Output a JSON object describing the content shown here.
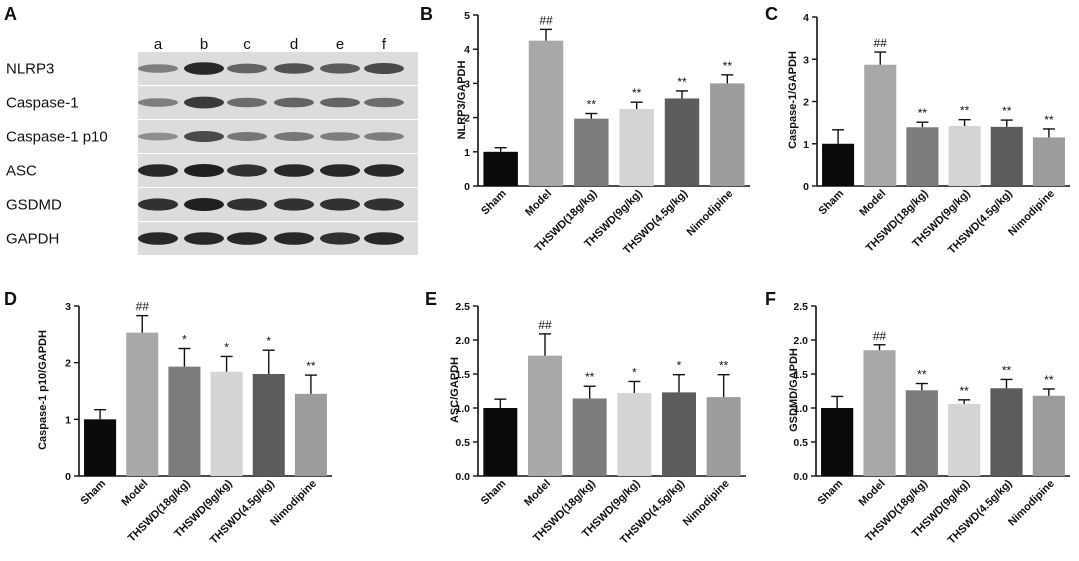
{
  "blot": {
    "letter": "A",
    "lanes": [
      "a",
      "b",
      "c",
      "d",
      "e",
      "f"
    ],
    "rows": [
      {
        "label": "NLRP3",
        "intensity": [
          0.45,
          0.95,
          0.6,
          0.7,
          0.65,
          0.75
        ]
      },
      {
        "label": "Caspase-1",
        "intensity": [
          0.45,
          0.85,
          0.55,
          0.6,
          0.6,
          0.55
        ]
      },
      {
        "label": "Caspase-1 p10",
        "intensity": [
          0.35,
          0.75,
          0.5,
          0.5,
          0.45,
          0.45
        ]
      },
      {
        "label": "ASC",
        "intensity": [
          0.95,
          1.0,
          0.9,
          0.95,
          0.95,
          0.95
        ]
      },
      {
        "label": "GSDMD",
        "intensity": [
          0.9,
          1.0,
          0.9,
          0.9,
          0.9,
          0.9
        ]
      },
      {
        "label": "GAPDH",
        "intensity": [
          0.95,
          0.95,
          0.95,
          0.95,
          0.9,
          0.95
        ]
      }
    ]
  },
  "chart_data": [
    {
      "panel": "B",
      "type": "bar",
      "ylabel": "NLRP3/GAPDH",
      "categories": [
        "Sham",
        "Model",
        "THSWD(18g/kg)",
        "THSWD(9g/kg)",
        "THSWD(4.5g/kg)",
        "Nimodipine"
      ],
      "values": [
        1.0,
        4.25,
        1.97,
        2.25,
        2.56,
        3.0
      ],
      "errors": [
        0.12,
        0.33,
        0.15,
        0.2,
        0.22,
        0.25
      ],
      "significance": [
        "",
        "##",
        "**",
        "**",
        "**",
        "**"
      ],
      "ylim": [
        0,
        5
      ],
      "yticks": [
        0,
        1,
        2,
        3,
        4,
        5
      ],
      "tick_labels": [
        "0",
        "1",
        "2",
        "3",
        "4",
        "5"
      ],
      "colors": [
        "#0a0a0a",
        "#a8a8a8",
        "#7c7c7c",
        "#d4d4d4",
        "#5c5c5c",
        "#9c9c9c"
      ]
    },
    {
      "panel": "C",
      "type": "bar",
      "ylabel": "Caspase-1/GAPDH",
      "categories": [
        "Sham",
        "Model",
        "THSWD(18g/kg)",
        "THSWD(9g/kg)",
        "THSWD(4.5g/kg)",
        "Nimodipine"
      ],
      "values": [
        1.0,
        2.87,
        1.39,
        1.42,
        1.4,
        1.15
      ],
      "errors": [
        0.33,
        0.3,
        0.12,
        0.15,
        0.16,
        0.2
      ],
      "significance": [
        "",
        "##",
        "**",
        "**",
        "**",
        "**"
      ],
      "ylim": [
        0,
        4
      ],
      "yticks": [
        0,
        1,
        2,
        3,
        4
      ],
      "tick_labels": [
        "0",
        "1",
        "2",
        "3",
        "4"
      ],
      "colors": [
        "#0a0a0a",
        "#a8a8a8",
        "#7c7c7c",
        "#d4d4d4",
        "#5c5c5c",
        "#9c9c9c"
      ]
    },
    {
      "panel": "D",
      "type": "bar",
      "ylabel": "Caspase-1 p10/GAPDH",
      "categories": [
        "Sham",
        "Model",
        "THSWD(18g/kg)",
        "THSWD(9g/kg)",
        "THSWD(4.5g/kg)",
        "Nimodipine"
      ],
      "values": [
        1.0,
        2.53,
        1.93,
        1.84,
        1.8,
        1.45
      ],
      "errors": [
        0.17,
        0.3,
        0.32,
        0.27,
        0.42,
        0.33
      ],
      "significance": [
        "",
        "##",
        "*",
        "*",
        "*",
        "**"
      ],
      "ylim": [
        0,
        3
      ],
      "yticks": [
        0,
        1,
        2,
        3
      ],
      "tick_labels": [
        "0",
        "1",
        "2",
        "3"
      ],
      "colors": [
        "#0a0a0a",
        "#a8a8a8",
        "#7c7c7c",
        "#d4d4d4",
        "#5c5c5c",
        "#9c9c9c"
      ]
    },
    {
      "panel": "E",
      "type": "bar",
      "ylabel": "ASC/GAPDH",
      "categories": [
        "Sham",
        "Model",
        "THSWD(18g/kg)",
        "THSWD(9g/kg)",
        "THSWD(4.5g/kg)",
        "Nimodipine"
      ],
      "values": [
        1.0,
        1.77,
        1.14,
        1.22,
        1.23,
        1.16
      ],
      "errors": [
        0.13,
        0.32,
        0.18,
        0.17,
        0.26,
        0.33
      ],
      "significance": [
        "",
        "##",
        "**",
        "*",
        "*",
        "**"
      ],
      "ylim": [
        0,
        2.5
      ],
      "yticks": [
        0,
        0.5,
        1,
        1.5,
        2,
        2.5
      ],
      "tick_labels": [
        "0.0",
        "0.5",
        "1.0",
        "1.5",
        "2.0",
        "2.5"
      ],
      "colors": [
        "#0a0a0a",
        "#a8a8a8",
        "#7c7c7c",
        "#d4d4d4",
        "#5c5c5c",
        "#9c9c9c"
      ]
    },
    {
      "panel": "F",
      "type": "bar",
      "ylabel": "GSDMD/GAPDH",
      "categories": [
        "Sham",
        "Model",
        "THSWD(18g/kg)",
        "THSWD(9g/kg)",
        "THSWD(4.5g/kg)",
        "Nimodipine"
      ],
      "values": [
        1.0,
        1.85,
        1.26,
        1.06,
        1.29,
        1.18
      ],
      "errors": [
        0.17,
        0.08,
        0.1,
        0.06,
        0.13,
        0.1
      ],
      "significance": [
        "",
        "##",
        "**",
        "**",
        "**",
        "**"
      ],
      "ylim": [
        0,
        2.5
      ],
      "yticks": [
        0,
        0.5,
        1,
        1.5,
        2,
        2.5
      ],
      "tick_labels": [
        "0.0",
        "0.5",
        "1.0",
        "1.5",
        "2.0",
        "2.5"
      ],
      "colors": [
        "#0a0a0a",
        "#a8a8a8",
        "#7c7c7c",
        "#d4d4d4",
        "#5c5c5c",
        "#9c9c9c"
      ]
    }
  ]
}
